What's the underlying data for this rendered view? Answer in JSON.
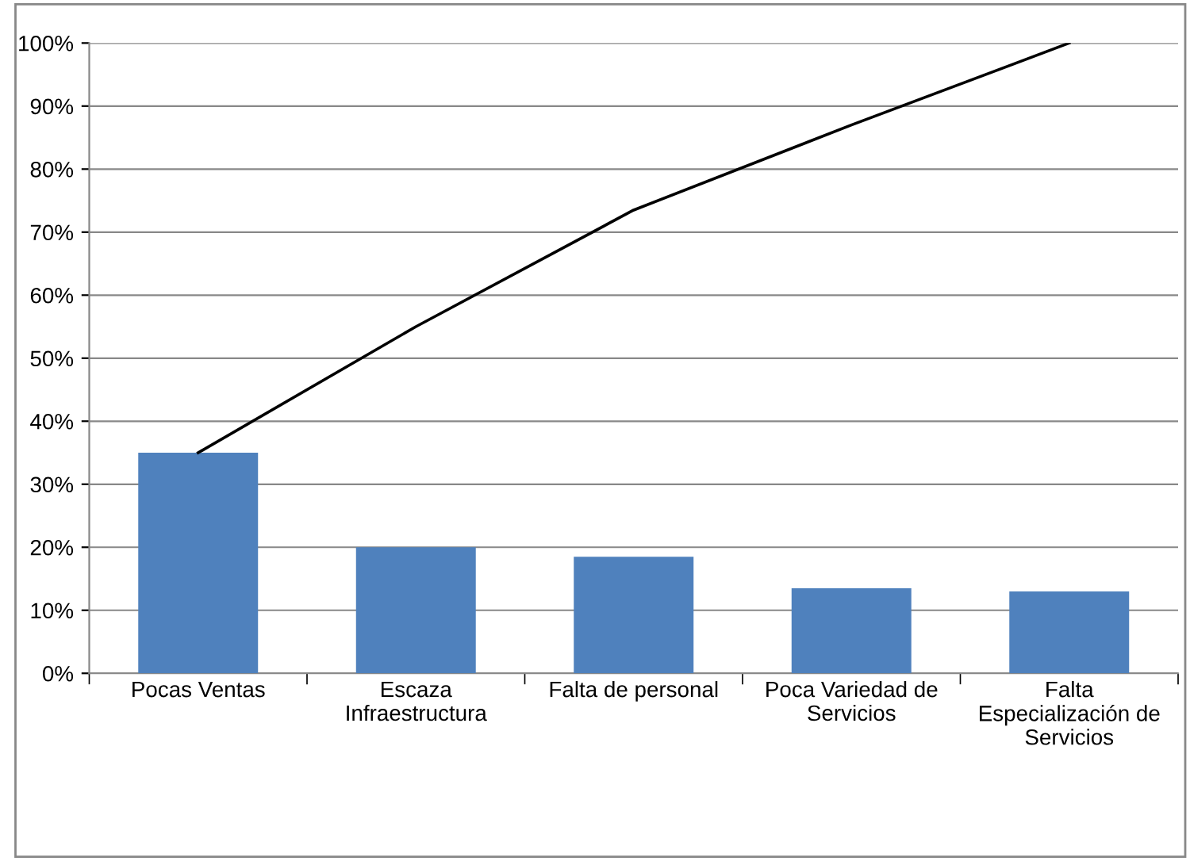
{
  "chart_data": {
    "type": "bar",
    "categories": [
      "Pocas Ventas",
      "Escaza\nInfraestructura",
      "Falta de personal",
      "Poca Variedad de\nServicios",
      "Falta\nEspecialización de\nServicios"
    ],
    "series": [
      {
        "color": "#4f81bd",
        "values": [
          35,
          20,
          18.5,
          13.5,
          13
        ]
      },
      {
        "type": "line",
        "color": "#000000",
        "values": [
          35,
          55,
          73.5,
          87,
          100
        ]
      }
    ],
    "ylim": [
      0,
      100
    ],
    "yticks": [
      {
        "value": 0,
        "label": "0%"
      },
      {
        "value": 10,
        "label": "10%"
      },
      {
        "value": 20,
        "label": "20%"
      },
      {
        "value": 30,
        "label": "30%"
      },
      {
        "value": 40,
        "label": "40%"
      },
      {
        "value": 50,
        "label": "50%"
      },
      {
        "value": 60,
        "label": "60%"
      },
      {
        "value": 70,
        "label": "70%"
      },
      {
        "value": 80,
        "label": "80%"
      },
      {
        "value": 90,
        "label": "90%"
      },
      {
        "value": 100,
        "label": "100%"
      }
    ],
    "grid": "y",
    "marker": "none",
    "line_style": "solid"
  }
}
